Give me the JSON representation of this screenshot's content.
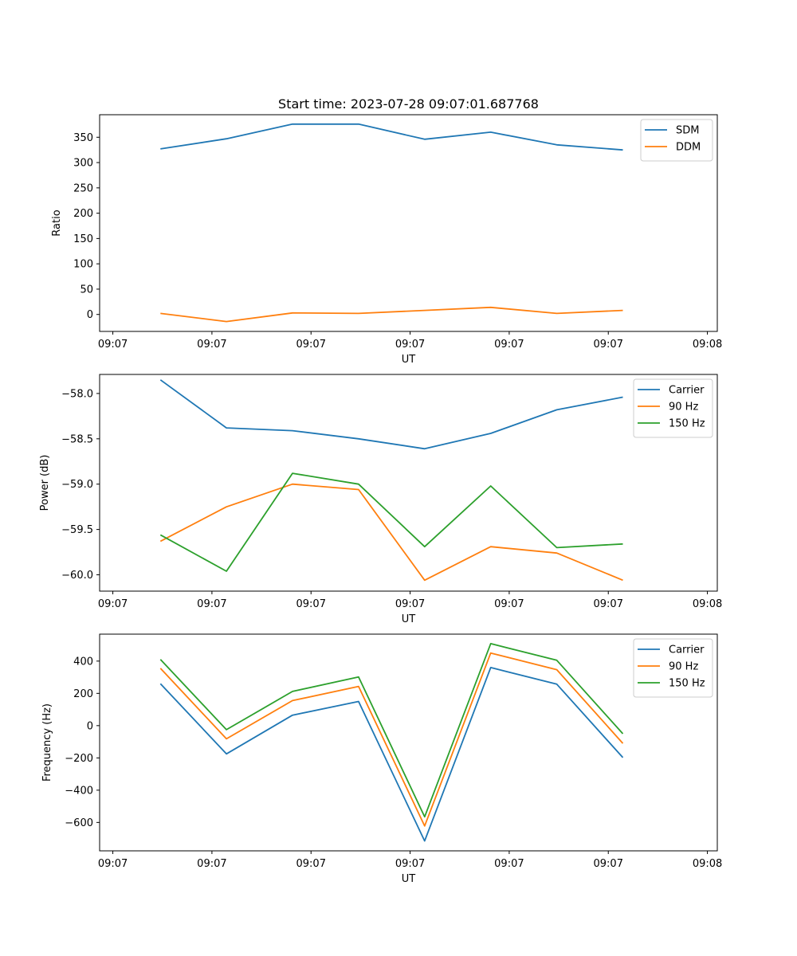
{
  "figure_title": "Start time: 2023-07-28 09:07:01.687768",
  "chart_data": [
    {
      "type": "line",
      "xlabel": "UT",
      "ylabel": "Ratio",
      "ylim": [
        -33.5,
        394.5
      ],
      "yticks": [
        0,
        50,
        100,
        150,
        200,
        250,
        300,
        350
      ],
      "ytick_labels": [
        "0",
        "50",
        "100",
        "150",
        "200",
        "250",
        "300",
        "350"
      ],
      "xlim": [
        -0.2,
        9.15
      ],
      "xticks": [
        0,
        1.5,
        3,
        4.5,
        6,
        7.5,
        9
      ],
      "xtick_labels": [
        "09:07",
        "09:07",
        "09:07",
        "09:07",
        "09:07",
        "09:07",
        "09:08"
      ],
      "x": [
        0.72,
        1.72,
        2.72,
        3.72,
        4.72,
        5.72,
        6.72,
        7.72
      ],
      "series": [
        {
          "name": "SDM",
          "color": "#1f77b4",
          "values": [
            327,
            347,
            376,
            376,
            346,
            360,
            335,
            325
          ]
        },
        {
          "name": "DDM",
          "color": "#ff7f0e",
          "values": [
            2,
            -14,
            3,
            2,
            8,
            14,
            2,
            8
          ]
        }
      ],
      "legend": "top-right"
    },
    {
      "type": "line",
      "xlabel": "UT",
      "ylabel": "Power (dB)",
      "ylim": [
        -60.18,
        -57.79
      ],
      "yticks": [
        -60.0,
        -59.5,
        -59.0,
        -58.5,
        -58.0
      ],
      "ytick_labels": [
        "−60.0",
        "−59.5",
        "−59.0",
        "−58.5",
        "−58.0"
      ],
      "xlim": [
        -0.2,
        9.15
      ],
      "xticks": [
        0,
        1.5,
        3,
        4.5,
        6,
        7.5,
        9
      ],
      "xtick_labels": [
        "09:07",
        "09:07",
        "09:07",
        "09:07",
        "09:07",
        "09:07",
        "09:08"
      ],
      "x": [
        0.72,
        1.72,
        2.72,
        3.72,
        4.72,
        5.72,
        6.72,
        7.72
      ],
      "series": [
        {
          "name": "Carrier",
          "color": "#1f77b4",
          "values": [
            -57.85,
            -58.38,
            -58.41,
            -58.5,
            -58.61,
            -58.44,
            -58.18,
            -58.04
          ]
        },
        {
          "name": "90 Hz",
          "color": "#ff7f0e",
          "values": [
            -59.63,
            -59.25,
            -59.0,
            -59.06,
            -60.06,
            -59.69,
            -59.76,
            -60.06
          ]
        },
        {
          "name": "150 Hz",
          "color": "#2ca02c",
          "values": [
            -59.56,
            -59.96,
            -58.88,
            -59.0,
            -59.69,
            -59.02,
            -59.7,
            -59.66
          ]
        }
      ],
      "legend": "top-right"
    },
    {
      "type": "line",
      "xlabel": "UT",
      "ylabel": "Frequency (Hz)",
      "ylim": [
        -776,
        567
      ],
      "yticks": [
        -600,
        -400,
        -200,
        0,
        200,
        400
      ],
      "ytick_labels": [
        "−600",
        "−400",
        "−200",
        "0",
        "200",
        "400"
      ],
      "xlim": [
        -0.2,
        9.15
      ],
      "xticks": [
        0,
        1.5,
        3,
        4.5,
        6,
        7.5,
        9
      ],
      "xtick_labels": [
        "09:07",
        "09:07",
        "09:07",
        "09:07",
        "09:07",
        "09:07",
        "09:08"
      ],
      "x": [
        0.72,
        1.72,
        2.72,
        3.72,
        4.72,
        5.72,
        6.72,
        7.72
      ],
      "series": [
        {
          "name": "Carrier",
          "color": "#1f77b4",
          "values": [
            260,
            -175,
            65,
            150,
            -715,
            360,
            257,
            -198
          ]
        },
        {
          "name": "90 Hz",
          "color": "#ff7f0e",
          "values": [
            355,
            -82,
            155,
            243,
            -622,
            450,
            347,
            -110
          ]
        },
        {
          "name": "150 Hz",
          "color": "#2ca02c",
          "values": [
            410,
            -25,
            212,
            302,
            -565,
            508,
            405,
            -50
          ]
        }
      ],
      "legend": "top-right"
    }
  ]
}
